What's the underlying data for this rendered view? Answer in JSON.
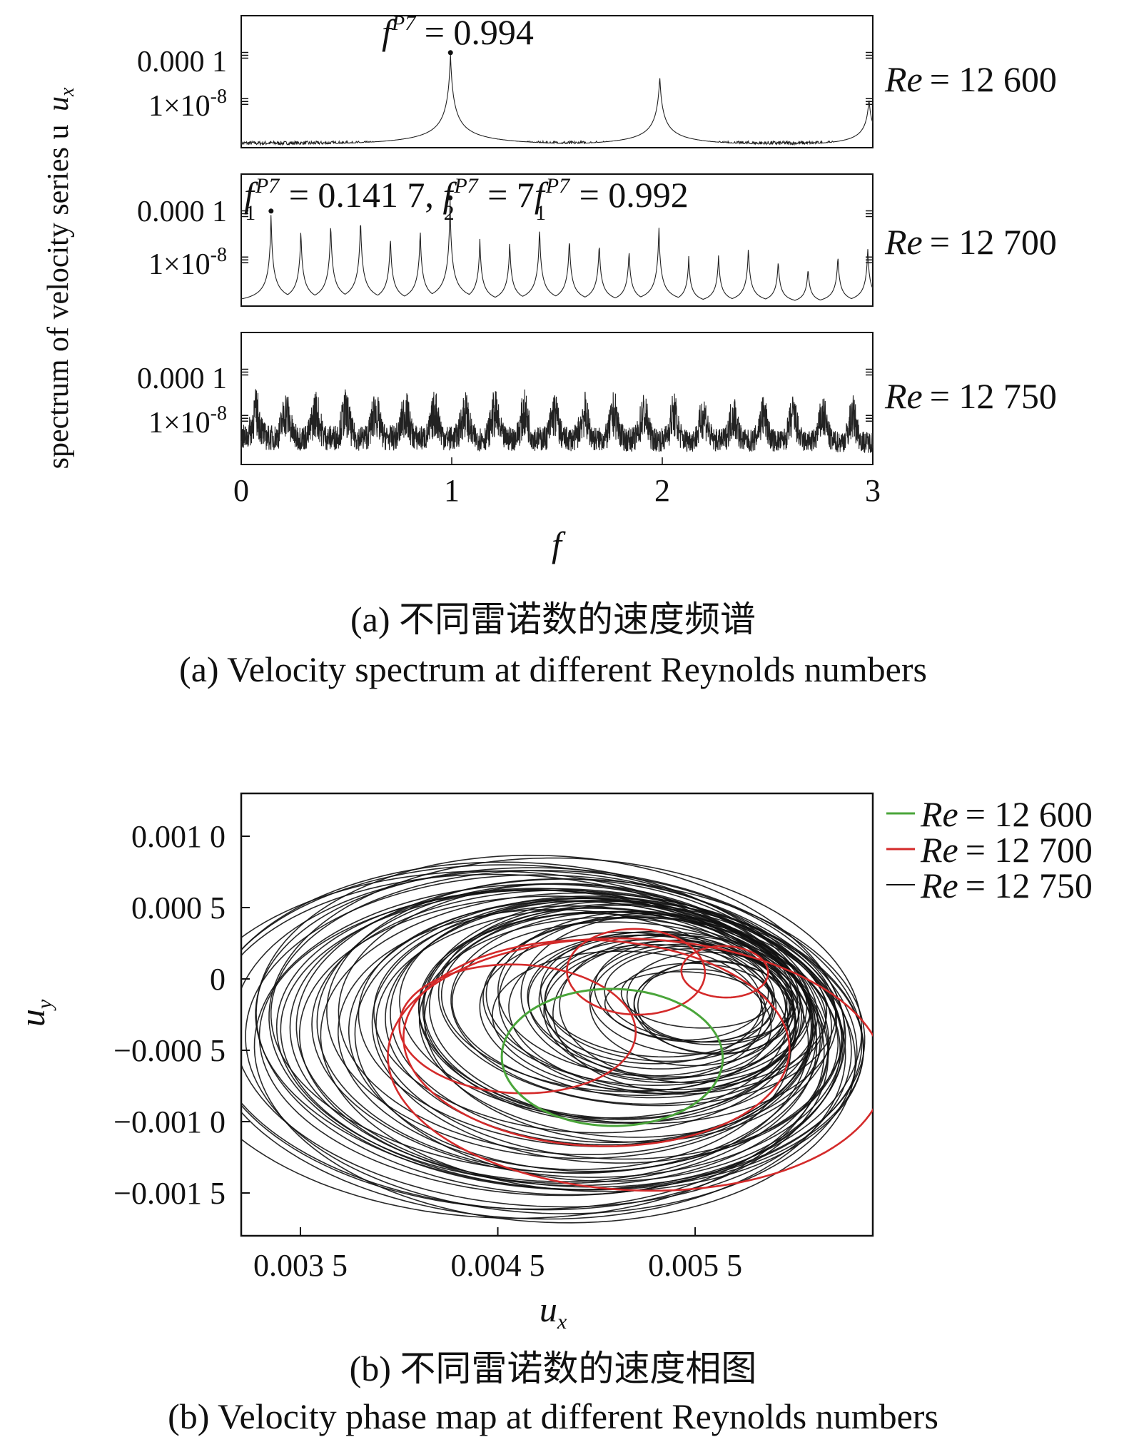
{
  "chart_data": [
    {
      "type": "line",
      "subtype": "stacked-spectra",
      "xlabel": "f",
      "ylabel": "spectrum of velocity series u",
      "ylabel_subscript": "x",
      "xlim": [
        0,
        3
      ],
      "x_ticks": [
        "0",
        "1",
        "2",
        "3"
      ],
      "y_ticks": [
        "0.000 1",
        "1×10",
        "-8"
      ],
      "y_scale": "log",
      "panels": [
        {
          "name": "Re = 12 600",
          "re_label": "Re",
          "re_value": "= 12 600",
          "annotation": {
            "base": "f",
            "sup": "P7",
            "rest": " = 0.994"
          },
          "fundamental": 0.994,
          "peaks": [
            {
              "f": 0.994,
              "level": 0.72
            },
            {
              "f": 1.988,
              "level": 0.55
            },
            {
              "f": 2.982,
              "level": 0.38
            }
          ]
        },
        {
          "name": "Re = 12 700",
          "re_label": "Re",
          "re_value": "= 12 700",
          "annotation": {
            "part1": "f",
            "sub1": "1",
            "sup1": "P7",
            "part2": " = 0.141 7, ",
            "part3": "f",
            "sub3": "2",
            "sup3": "P7",
            "part4": " = 7",
            "part5": "f",
            "sub5": "1",
            "sup5": "P7",
            "part6": " = 0.992"
          },
          "fundamental": 0.1417,
          "peaks": [
            {
              "f": 0.1417,
              "level": 0.72
            },
            {
              "f": 0.2834,
              "level": 0.6
            },
            {
              "f": 0.4251,
              "level": 0.66
            },
            {
              "f": 0.5668,
              "level": 0.7
            },
            {
              "f": 0.7085,
              "level": 0.55
            },
            {
              "f": 0.8502,
              "level": 0.6
            },
            {
              "f": 0.992,
              "level": 0.82
            },
            {
              "f": 1.1337,
              "level": 0.52
            },
            {
              "f": 1.2754,
              "level": 0.5
            },
            {
              "f": 1.4171,
              "level": 0.62
            },
            {
              "f": 1.5588,
              "level": 0.54
            },
            {
              "f": 1.7005,
              "level": 0.5
            },
            {
              "f": 1.8422,
              "level": 0.44
            },
            {
              "f": 1.984,
              "level": 0.62
            },
            {
              "f": 2.1257,
              "level": 0.38
            },
            {
              "f": 2.2674,
              "level": 0.4
            },
            {
              "f": 2.4091,
              "level": 0.46
            },
            {
              "f": 2.5508,
              "level": 0.36
            },
            {
              "f": 2.6925,
              "level": 0.3
            },
            {
              "f": 2.8342,
              "level": 0.4
            },
            {
              "f": 2.976,
              "level": 0.46
            }
          ]
        },
        {
          "name": "Re = 12 750",
          "re_label": "Re",
          "re_value": "= 12 750",
          "annotation": null,
          "fundamental": 0.1417,
          "peaks": [],
          "broadband": true
        }
      ],
      "caption_cn": "(a) 不同雷诺数的速度频谱",
      "caption_en": "(a) Velocity spectrum at different Reynolds numbers"
    },
    {
      "type": "line",
      "subtype": "phase-portrait",
      "xlabel": "u",
      "xlabel_subscript": "x",
      "ylabel": "u",
      "ylabel_subscript": "y",
      "xlim": [
        0.0032,
        0.0064
      ],
      "ylim": [
        -0.0018,
        0.0013
      ],
      "x_ticks": [
        {
          "value": 0.0035,
          "label": "0.003 5"
        },
        {
          "value": 0.0045,
          "label": "0.004 5"
        },
        {
          "value": 0.0055,
          "label": "0.005 5"
        }
      ],
      "y_ticks": [
        {
          "value": 0.001,
          "label": "0.001 0"
        },
        {
          "value": 0.0005,
          "label": "0.000 5"
        },
        {
          "value": 0,
          "label": "0"
        },
        {
          "value": -0.0005,
          "label": "−0.000 5"
        },
        {
          "value": -0.001,
          "label": "−0.001 0"
        },
        {
          "value": -0.0015,
          "label": "−0.001 5"
        }
      ],
      "series": [
        {
          "name": "Re = 12 600",
          "re_label": "Re",
          "re_value": "= 12 600",
          "color": "#4aa53a",
          "center": [
            0.00508,
            -0.00055
          ],
          "radius": [
            0.00056,
            0.00048
          ]
        },
        {
          "name": "Re = 12 700",
          "re_label": "Re",
          "re_value": "= 12 700",
          "color": "#d42a2a",
          "loops": [
            {
              "center": [
                0.0052,
                -0.0006
              ],
              "radius": [
                0.00126,
                0.00088
              ]
            },
            {
              "center": [
                0.005,
                -0.00045
              ],
              "radius": [
                0.00098,
                0.00072
              ]
            },
            {
              "center": [
                0.0046,
                -0.00035
              ],
              "radius": [
                0.0006,
                0.00045
              ]
            },
            {
              "center": [
                0.0052,
                5e-05
              ],
              "radius": [
                0.00035,
                0.0003
              ]
            },
            {
              "center": [
                0.00565,
                5e-05
              ],
              "radius": [
                0.00022,
                0.00018
              ]
            }
          ]
        },
        {
          "name": "Re = 12 750",
          "re_label": "Re",
          "re_value": "= 12 750",
          "color": "#111111",
          "chaotic": true
        }
      ],
      "legend_position": "top-right",
      "caption_cn": "(b) 不同雷诺数的速度相图",
      "caption_en": "(b) Velocity phase map at different Reynolds numbers"
    }
  ]
}
